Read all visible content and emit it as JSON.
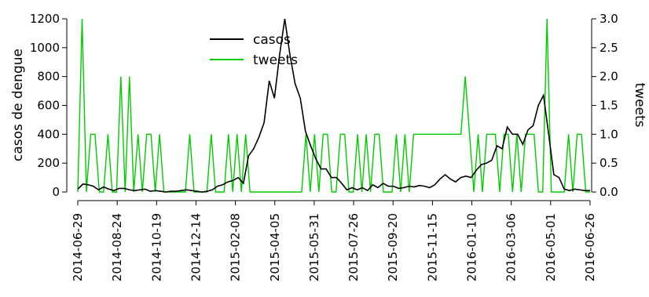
{
  "chart_data": {
    "type": "line",
    "xlabel": "",
    "ylabel_left": "casos de dengue",
    "ylabel_right": "tweets",
    "ylim_left": [
      0,
      1200
    ],
    "ylim_right": [
      0,
      3
    ],
    "y_ticks_left": [
      "0",
      "200",
      "400",
      "600",
      "800",
      "1000",
      "1200"
    ],
    "y_ticks_right": [
      "0.0",
      "0.5",
      "1.0",
      "1.5",
      "2.0",
      "2.5",
      "3.0"
    ],
    "x_ticks": [
      "2014-06-29",
      "2014-08-24",
      "2014-10-19",
      "2014-12-14",
      "2015-02-08",
      "2015-04-05",
      "2015-05-31",
      "2015-07-26",
      "2015-09-20",
      "2015-11-15",
      "2016-01-10",
      "2016-03-06",
      "2016-05-01",
      "2016-06-26"
    ],
    "legend_position": "top-center",
    "series": [
      {
        "name": "casos",
        "axis": "left",
        "color": "#000000",
        "values": [
          20,
          55,
          50,
          40,
          15,
          35,
          20,
          10,
          25,
          25,
          15,
          10,
          15,
          20,
          5,
          10,
          5,
          0,
          5,
          5,
          10,
          15,
          10,
          5,
          0,
          5,
          15,
          40,
          50,
          70,
          80,
          100,
          60,
          250,
          300,
          380,
          480,
          770,
          650,
          950,
          1200,
          950,
          750,
          650,
          420,
          320,
          230,
          160,
          160,
          100,
          100,
          60,
          15,
          30,
          15,
          30,
          10,
          50,
          30,
          60,
          40,
          40,
          25,
          30,
          40,
          35,
          45,
          40,
          30,
          50,
          90,
          120,
          90,
          70,
          100,
          110,
          100,
          150,
          190,
          200,
          220,
          320,
          300,
          450,
          400,
          400,
          330,
          430,
          460,
          600,
          670,
          400,
          120,
          100,
          20,
          10,
          20,
          15,
          10,
          10
        ]
      },
      {
        "name": "tweets",
        "axis": "right",
        "color": "#00cc00",
        "values": [
          0,
          3,
          0,
          1,
          1,
          0,
          0,
          1,
          0,
          0,
          2,
          0,
          2,
          0,
          1,
          0,
          1,
          1,
          0,
          1,
          0,
          0,
          0,
          0,
          0,
          0,
          1,
          0,
          0,
          0,
          0,
          1,
          0,
          0,
          0,
          1,
          0,
          1,
          0,
          1,
          0,
          0,
          0,
          0,
          0,
          0,
          0,
          0,
          0,
          0,
          0,
          0,
          0,
          1,
          0,
          1,
          0,
          1,
          1,
          0,
          0,
          1,
          1,
          0,
          0,
          1,
          0,
          1,
          0,
          1,
          1,
          0,
          0,
          0,
          1,
          0,
          1,
          0,
          1,
          1,
          1,
          1,
          1,
          1,
          1,
          1,
          1,
          1,
          1,
          1,
          2,
          1,
          0,
          1,
          0,
          1,
          1,
          1,
          0,
          1,
          1,
          0,
          1,
          0,
          1,
          1,
          1,
          0,
          0,
          3,
          0,
          0,
          0,
          0,
          1,
          0,
          1,
          1,
          0,
          0
        ]
      }
    ]
  }
}
